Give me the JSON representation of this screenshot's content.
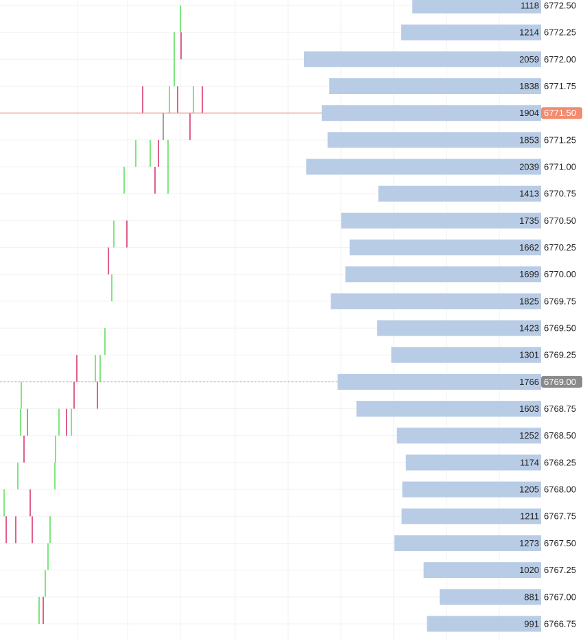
{
  "chart_data": {
    "type": "volume_profile",
    "yticks": [
      {
        "value": 6772.5,
        "label": "6772.50"
      },
      {
        "value": 6772.25,
        "label": "6772.25"
      },
      {
        "value": 6772.0,
        "label": "6772.00"
      },
      {
        "value": 6771.75,
        "label": "6771.75"
      },
      {
        "value": 6771.5,
        "label": "6771.50"
      },
      {
        "value": 6771.25,
        "label": "6771.25"
      },
      {
        "value": 6771.0,
        "label": "6771.00"
      },
      {
        "value": 6770.75,
        "label": "6770.75"
      },
      {
        "value": 6770.5,
        "label": "6770.50"
      },
      {
        "value": 6770.25,
        "label": "6770.25"
      },
      {
        "value": 6770.0,
        "label": "6770.00"
      },
      {
        "value": 6769.75,
        "label": "6769.75"
      },
      {
        "value": 6769.5,
        "label": "6769.50"
      },
      {
        "value": 6769.25,
        "label": "6769.25"
      },
      {
        "value": 6769.0,
        "label": "6769.00"
      },
      {
        "value": 6768.75,
        "label": "6768.75"
      },
      {
        "value": 6768.5,
        "label": "6768.50"
      },
      {
        "value": 6768.25,
        "label": "6768.25"
      },
      {
        "value": 6768.0,
        "label": "6768.00"
      },
      {
        "value": 6767.75,
        "label": "6767.75"
      },
      {
        "value": 6767.5,
        "label": "6767.50"
      },
      {
        "value": 6767.25,
        "label": "6767.25"
      },
      {
        "value": 6767.0,
        "label": "6767.00"
      },
      {
        "value": 6766.75,
        "label": "6766.75"
      }
    ],
    "ylim": [
      6766.75,
      6772.5
    ],
    "values": [
      1118,
      1214,
      2059,
      1838,
      1904,
      1853,
      2039,
      1413,
      1735,
      1662,
      1699,
      1825,
      1423,
      1301,
      1766,
      1603,
      1252,
      1174,
      1205,
      1211,
      1273,
      1020,
      881,
      991
    ],
    "color": "#b9cce6",
    "grid": true,
    "current_price": {
      "value": 6771.5,
      "label": "6771.50",
      "color": "#f28b6f"
    },
    "marker_price": {
      "value": 6769.0,
      "label": "6769.00",
      "color": "#8a8a8a"
    },
    "candle_colors": {
      "up": "#7fe57f",
      "down": "#e0608a",
      "flat": "#a0a0a0"
    },
    "candles": [
      {
        "high": 6772.5,
        "low": 6772.25,
        "dir": "up"
      },
      {
        "high": 6772.25,
        "low": 6771.75,
        "dir": "up"
      },
      {
        "high": 6772.25,
        "low": 6772.0,
        "dir": "down"
      },
      {
        "high": 6771.75,
        "low": 6771.5,
        "dir": "down"
      },
      {
        "high": 6771.75,
        "low": 6771.5,
        "dir": "up"
      },
      {
        "high": 6771.75,
        "low": 6771.5,
        "dir": "down"
      },
      {
        "high": 6771.75,
        "low": 6771.5,
        "dir": "up"
      },
      {
        "high": 6771.75,
        "low": 6771.5,
        "dir": "down"
      },
      {
        "high": 6771.5,
        "low": 6771.25,
        "dir": "flat"
      },
      {
        "high": 6771.5,
        "low": 6771.25,
        "dir": "down"
      },
      {
        "high": 6771.25,
        "low": 6771.0,
        "dir": "up"
      },
      {
        "high": 6771.25,
        "low": 6771.0,
        "dir": "up"
      },
      {
        "high": 6771.25,
        "low": 6771.0,
        "dir": "down"
      },
      {
        "high": 6771.25,
        "low": 6770.75,
        "dir": "up"
      },
      {
        "high": 6771.0,
        "low": 6770.75,
        "dir": "up"
      },
      {
        "high": 6771.0,
        "low": 6770.75,
        "dir": "down"
      },
      {
        "high": 6770.5,
        "low": 6770.25,
        "dir": "up"
      },
      {
        "high": 6770.5,
        "low": 6770.25,
        "dir": "down"
      },
      {
        "high": 6770.25,
        "low": 6770.0,
        "dir": "down"
      },
      {
        "high": 6770.0,
        "low": 6769.75,
        "dir": "up"
      },
      {
        "high": 6769.5,
        "low": 6769.25,
        "dir": "up"
      },
      {
        "high": 6769.25,
        "low": 6769.0,
        "dir": "down"
      },
      {
        "high": 6769.25,
        "low": 6769.0,
        "dir": "up"
      },
      {
        "high": 6769.25,
        "low": 6769.0,
        "dir": "up"
      },
      {
        "high": 6769.0,
        "low": 6768.75,
        "dir": "down"
      },
      {
        "high": 6769.0,
        "low": 6768.75,
        "dir": "down"
      },
      {
        "high": 6769.0,
        "low": 6768.75,
        "dir": "up"
      },
      {
        "high": 6768.75,
        "low": 6768.5,
        "dir": "up"
      },
      {
        "high": 6768.75,
        "low": 6768.5,
        "dir": "flat"
      },
      {
        "high": 6768.75,
        "low": 6768.5,
        "dir": "up"
      },
      {
        "high": 6768.75,
        "low": 6768.5,
        "dir": "down"
      },
      {
        "high": 6768.75,
        "low": 6768.5,
        "dir": "up"
      },
      {
        "high": 6768.5,
        "low": 6768.25,
        "dir": "down"
      },
      {
        "high": 6768.5,
        "low": 6768.25,
        "dir": "up"
      },
      {
        "high": 6768.25,
        "low": 6768.0,
        "dir": "up"
      },
      {
        "high": 6768.25,
        "low": 6768.0,
        "dir": "up"
      },
      {
        "high": 6768.0,
        "low": 6767.75,
        "dir": "up"
      },
      {
        "high": 6768.0,
        "low": 6767.75,
        "dir": "down"
      },
      {
        "high": 6767.75,
        "low": 6767.5,
        "dir": "down"
      },
      {
        "high": 6767.75,
        "low": 6767.5,
        "dir": "down"
      },
      {
        "high": 6767.75,
        "low": 6767.5,
        "dir": "down"
      },
      {
        "high": 6767.75,
        "low": 6767.5,
        "dir": "up"
      },
      {
        "high": 6767.5,
        "low": 6767.25,
        "dir": "up"
      },
      {
        "high": 6767.25,
        "low": 6767.0,
        "dir": "up"
      },
      {
        "high": 6767.0,
        "low": 6766.75,
        "dir": "up"
      },
      {
        "high": 6767.0,
        "low": 6766.75,
        "dir": "down"
      }
    ]
  }
}
